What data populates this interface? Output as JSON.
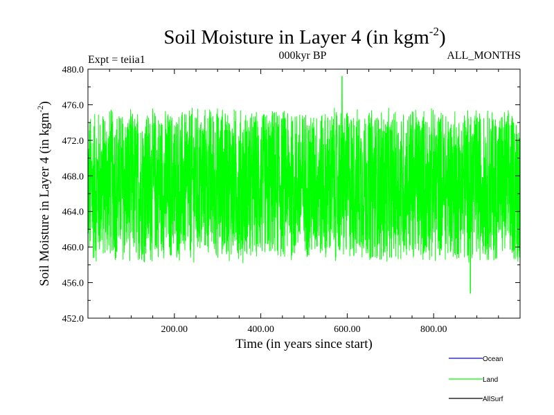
{
  "chart_data": {
    "type": "line",
    "title_main": "Soil Moisture in Layer 4 (in kgm",
    "title_sup": "-2",
    "title_close": ")",
    "subtitle_left": "Expt = teiia1",
    "subtitle_center": "000kyr BP",
    "subtitle_right": "ALL_MONTHS",
    "xlabel": "Time (in years since start)",
    "ylabel_main": "Soil Moisture in Layer 4 (in kgm",
    "ylabel_sup": "-2",
    "ylabel_close": ")",
    "xlim": [
      0,
      1000
    ],
    "ylim": [
      452,
      480
    ],
    "xticks": [
      200,
      400,
      600,
      800
    ],
    "xtick_labels": [
      "200.00",
      "400.00",
      "600.00",
      "800.00"
    ],
    "yticks": [
      452,
      456,
      460,
      464,
      468,
      472,
      476,
      480
    ],
    "ytick_labels": [
      "452.0",
      "456.0",
      "460.0",
      "464.0",
      "468.0",
      "472.0",
      "476.0",
      "480.0"
    ],
    "grid": false,
    "legend_position": "bottom-right",
    "series": [
      {
        "name": "Ocean",
        "color": "#0000ff",
        "values": []
      },
      {
        "name": "Land",
        "color": "#00ff00",
        "summary": {
          "mean": 467.0,
          "typical_min": 457.5,
          "typical_max": 475.0,
          "max": 479.2,
          "max_at": 588,
          "min": 454.8,
          "min_at": 885
        },
        "x": [
          0,
          50,
          100,
          150,
          200,
          250,
          300,
          350,
          400,
          450,
          500,
          550,
          600,
          650,
          700,
          750,
          800,
          850,
          900,
          950,
          1000
        ],
        "values": [
          466.5,
          467.2,
          466.8,
          467.0,
          466.9,
          467.1,
          467.3,
          467.0,
          466.8,
          467.2,
          467.0,
          466.9,
          467.1,
          467.0,
          466.8,
          467.2,
          467.0,
          466.9,
          467.1,
          467.0,
          466.8
        ]
      },
      {
        "name": "AllSurf",
        "color": "#000000",
        "values": []
      }
    ]
  }
}
